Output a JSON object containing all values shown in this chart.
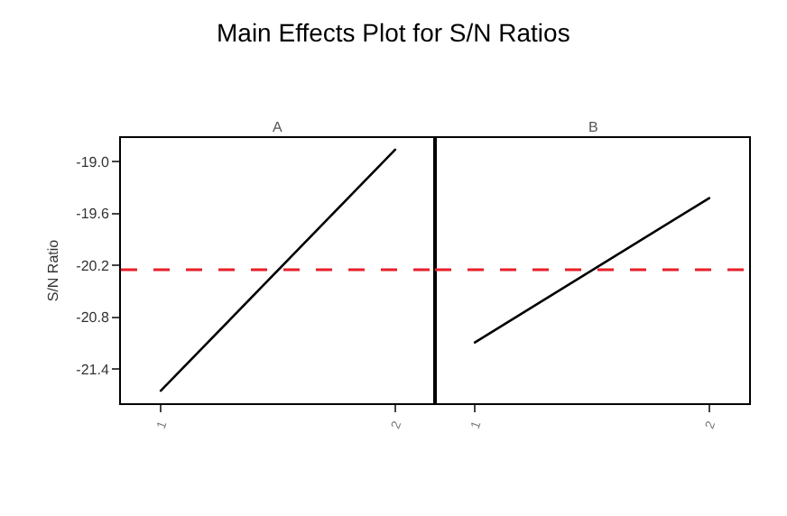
{
  "chart_data": [
    {
      "type": "line",
      "title": "A",
      "ylabel": "S/N Ratio",
      "annotations": [
        "Main Effects Plot for S/N Ratios"
      ],
      "categories": [
        "1",
        "2"
      ],
      "values": [
        -21.65,
        -18.86
      ],
      "color": "#000000",
      "ylim": [
        -21.79,
        -18.73
      ],
      "yticks": [
        {
          "value": -19,
          "label": "-19.0"
        },
        -19.6,
        -20.2,
        -20.8,
        -21.4
      ],
      "ref_lines": [
        {
          "axis": "y",
          "value": -20.25,
          "color": "#e8202a",
          "line_style": "dashed"
        }
      ]
    },
    {
      "type": "line",
      "title": "B",
      "categories": [
        "1",
        "2"
      ],
      "values": [
        -21.09,
        -19.42
      ],
      "color": "#000000",
      "ylim": [
        -21.79,
        -18.73
      ],
      "tick_labels": "x",
      "ref_lines": [
        {
          "axis": "y",
          "value": -20.25,
          "color": "#e8202a",
          "line_style": "dashed"
        }
      ]
    }
  ]
}
